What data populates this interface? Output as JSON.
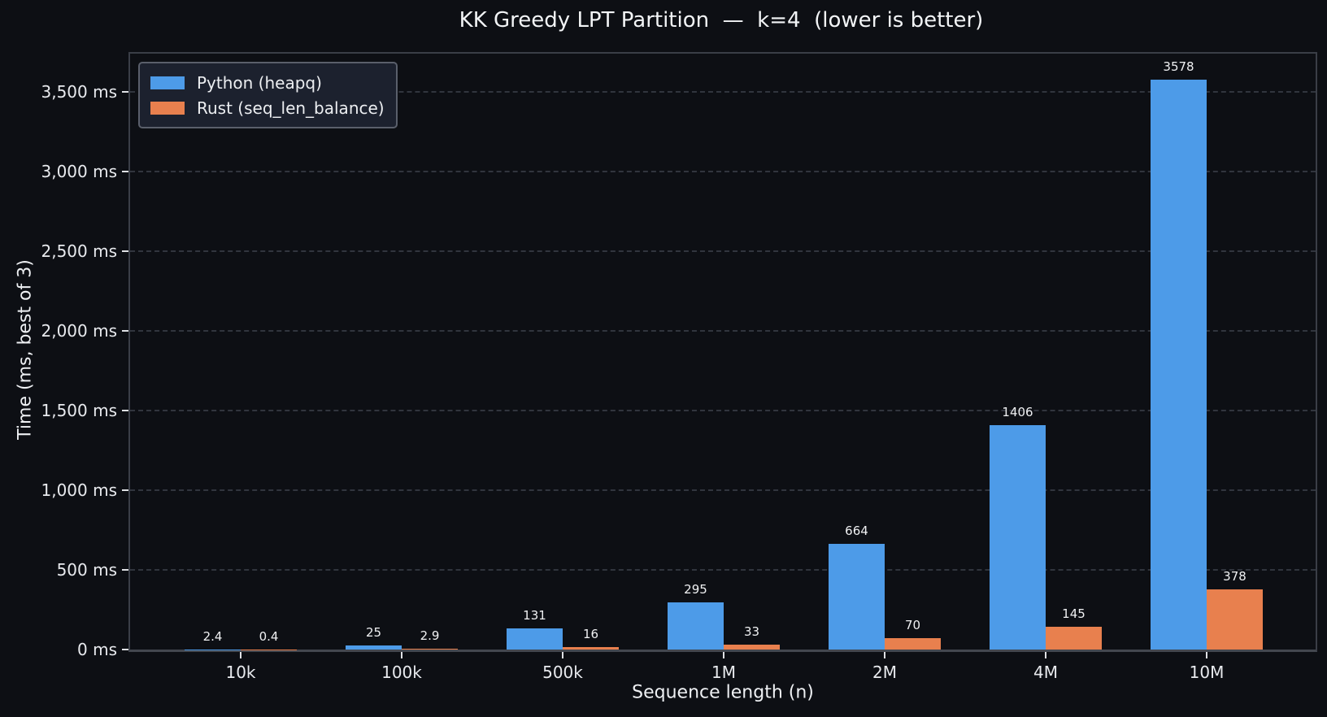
{
  "title": "KK Greedy LPT Partition  —  k=4  (lower is better)",
  "chart_data": {
    "type": "bar",
    "title": "KK Greedy LPT Partition  —  k=4  (lower is better)",
    "xlabel": "Sequence length (n)",
    "ylabel": "Time (ms, best of 3)",
    "categories": [
      "10k",
      "100k",
      "500k",
      "1M",
      "2M",
      "4M",
      "10M"
    ],
    "series": [
      {
        "name": "Python (heapq)",
        "key": "python",
        "color": "#4d9be8",
        "values": [
          2.4,
          25,
          131,
          295,
          664,
          1406,
          3578
        ]
      },
      {
        "name": "Rust (seq_len_balance)",
        "key": "rust",
        "color": "#e8804e",
        "values": [
          0.4,
          2.9,
          16,
          33,
          70,
          145,
          378
        ]
      }
    ],
    "y_ticks": [
      0,
      500,
      1000,
      1500,
      2000,
      2500,
      3000,
      3500
    ],
    "y_tick_suffix": " ms",
    "ylim": [
      0,
      3740
    ],
    "grid": "horizontal-dashed",
    "legend_position": "upper-left",
    "value_labels": "above-bars"
  },
  "colors": {
    "background": "#0d0f14",
    "python_bar": "#4d9be8",
    "rust_bar": "#e8804e",
    "text": "#eceef1",
    "gridline": "#31353e",
    "frame": "#3a3e47"
  }
}
